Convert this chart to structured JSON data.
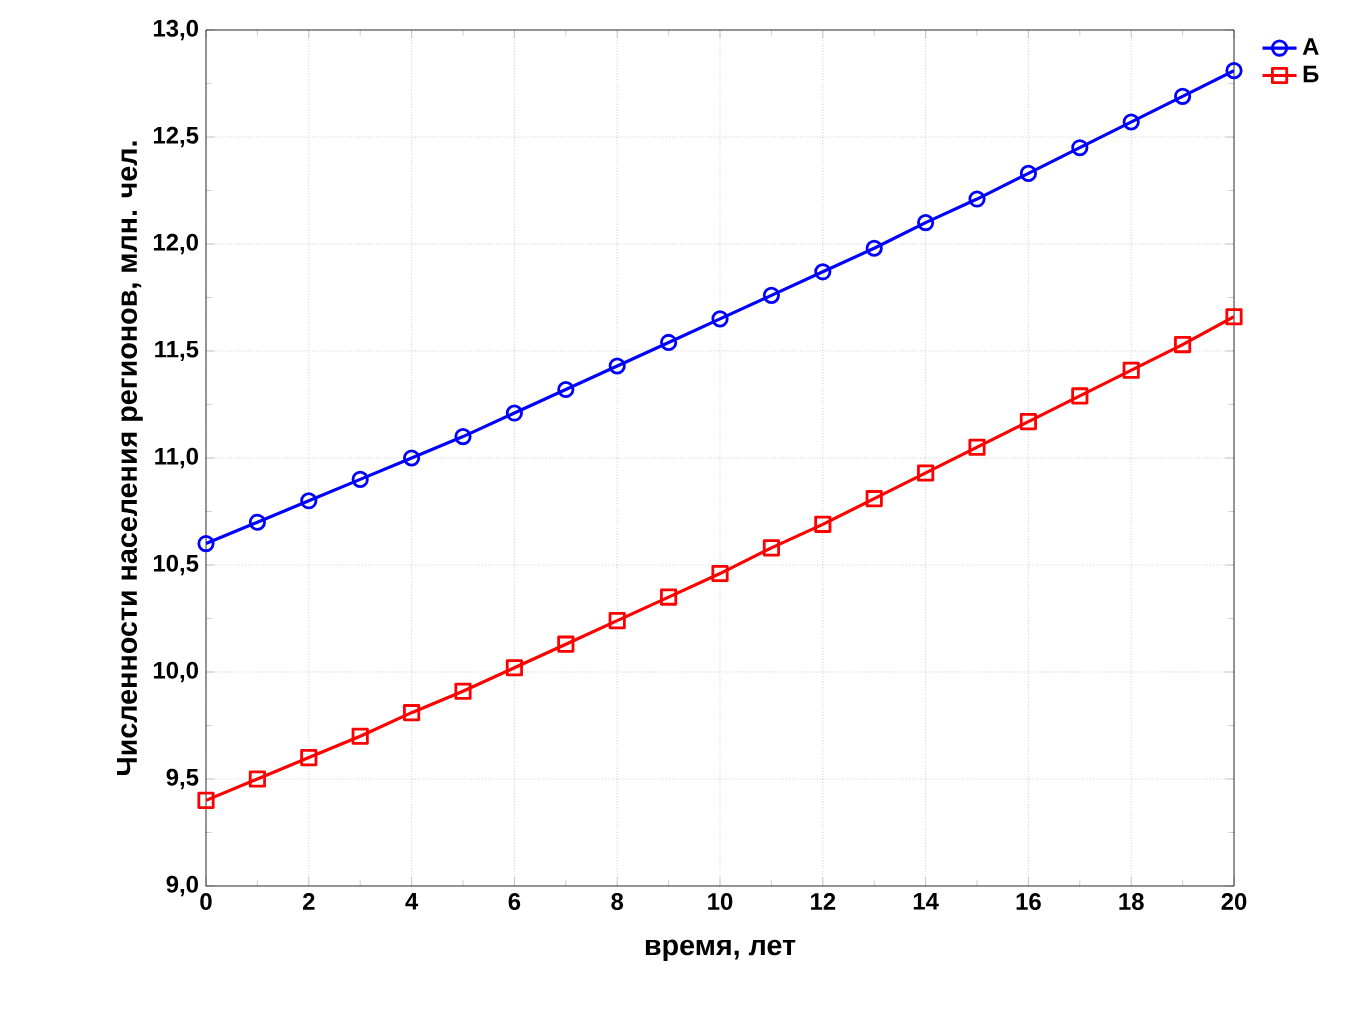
{
  "chart_data": {
    "type": "line",
    "xlabel": "время, лет",
    "ylabel": "Численности населения регионов, млн. чел.",
    "x": [
      0,
      1,
      2,
      3,
      4,
      5,
      6,
      7,
      8,
      9,
      10,
      11,
      12,
      13,
      14,
      15,
      16,
      17,
      18,
      19,
      20
    ],
    "series": [
      {
        "name": "А",
        "color": "#0000ff",
        "marker": "circle",
        "values": [
          10.6,
          10.7,
          10.8,
          10.9,
          11.0,
          11.1,
          11.21,
          11.32,
          11.43,
          11.54,
          11.65,
          11.76,
          11.87,
          11.98,
          12.1,
          12.21,
          12.33,
          12.45,
          12.57,
          12.69,
          12.81
        ]
      },
      {
        "name": "Б",
        "color": "#ff0000",
        "marker": "square",
        "values": [
          9.4,
          9.5,
          9.6,
          9.7,
          9.81,
          9.91,
          10.02,
          10.13,
          10.24,
          10.35,
          10.46,
          10.58,
          10.69,
          10.81,
          10.93,
          11.05,
          11.17,
          11.29,
          11.41,
          11.53,
          11.66
        ]
      }
    ],
    "xlim": [
      0,
      20
    ],
    "ylim": [
      9,
      13
    ],
    "xticks": [
      0,
      2,
      4,
      6,
      8,
      10,
      12,
      14,
      16,
      18,
      20
    ],
    "yticks": [
      {
        "value": 9,
        "label": "9,0"
      },
      {
        "value": 9.5,
        "label": "9,5"
      },
      {
        "value": 10,
        "label": "10,0"
      },
      {
        "value": 10.5,
        "label": "10,5"
      },
      {
        "value": 11,
        "label": "11,0"
      },
      {
        "value": 11.5,
        "label": "11,5"
      },
      {
        "value": 12,
        "label": "12,0"
      },
      {
        "value": 12.5,
        "label": "12,5"
      },
      {
        "value": 13,
        "label": "13,0"
      }
    ],
    "grid": true,
    "legend": "top right",
    "line_style": "solid"
  }
}
